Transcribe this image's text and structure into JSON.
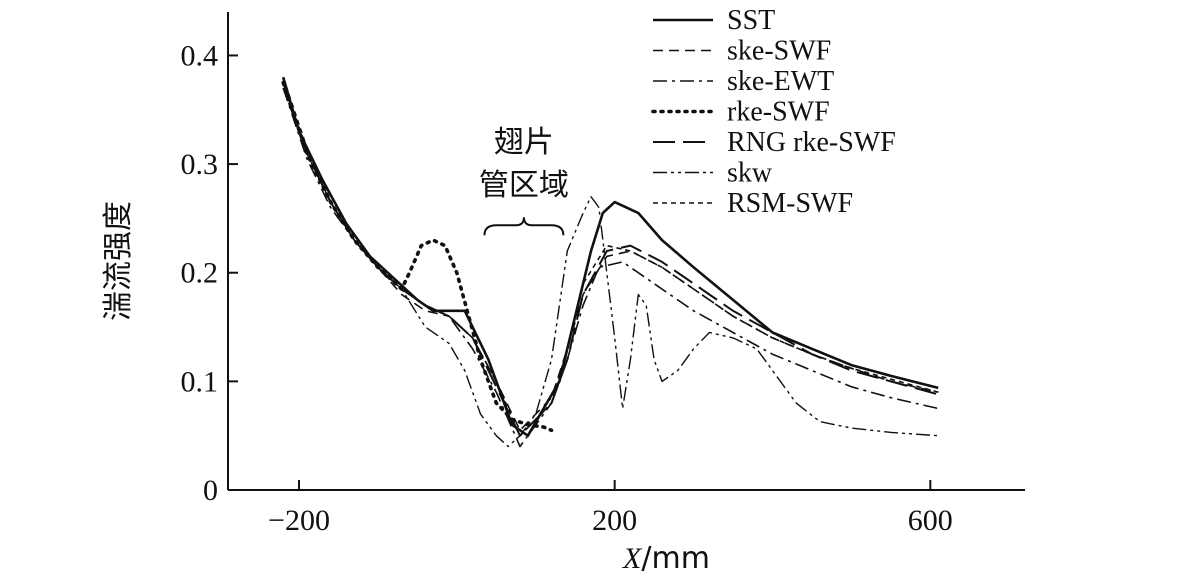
{
  "chart_data": {
    "type": "line",
    "xlabel_italic": "X",
    "xlabel_unit": "/mm",
    "ylabel": "湍流强度",
    "xlim": [
      -290,
      720
    ],
    "ylim": [
      0,
      0.44
    ],
    "xticks": [
      -200,
      200,
      600
    ],
    "xtick_labels": [
      "−200",
      "200",
      "600"
    ],
    "yticks": [
      0,
      0.1,
      0.2,
      0.3,
      0.4
    ],
    "ytick_labels": [
      "0",
      "0.1",
      "0.2",
      "0.3",
      "0.4"
    ],
    "grid": false,
    "legend_position": "top-right",
    "annotation": {
      "lines": [
        "翅片",
        "管区域"
      ],
      "x_range": [
        35,
        135
      ],
      "y": 0.24
    },
    "series": [
      {
        "name": "SST",
        "style": "solid",
        "x": [
          -220,
          -200,
          -170,
          -140,
          -110,
          -80,
          -50,
          -30,
          -10,
          10,
          40,
          70,
          90,
          110,
          130,
          150,
          170,
          185,
          200,
          230,
          260,
          300,
          350,
          400,
          450,
          500,
          550,
          610
        ],
        "y": [
          0.38,
          0.33,
          0.285,
          0.245,
          0.215,
          0.195,
          0.175,
          0.165,
          0.165,
          0.165,
          0.12,
          0.06,
          0.05,
          0.075,
          0.1,
          0.16,
          0.22,
          0.255,
          0.265,
          0.255,
          0.23,
          0.205,
          0.175,
          0.145,
          0.13,
          0.115,
          0.105,
          0.094
        ]
      },
      {
        "name": "ske-SWF",
        "style": "dash",
        "x": [
          -220,
          -190,
          -160,
          -130,
          -100,
          -70,
          -40,
          -10,
          20,
          50,
          80,
          100,
          120,
          140,
          160,
          190,
          220,
          260,
          300,
          350,
          400,
          450,
          500,
          550,
          610
        ],
        "y": [
          0.37,
          0.31,
          0.265,
          0.23,
          0.205,
          0.18,
          0.165,
          0.16,
          0.14,
          0.1,
          0.055,
          0.07,
          0.085,
          0.13,
          0.18,
          0.215,
          0.22,
          0.205,
          0.185,
          0.16,
          0.14,
          0.125,
          0.112,
          0.1,
          0.09
        ]
      },
      {
        "name": "ske-EWT",
        "style": "dashdot",
        "x": [
          -220,
          -190,
          -160,
          -130,
          -100,
          -70,
          -40,
          -10,
          20,
          50,
          80,
          100,
          120,
          140,
          160,
          180,
          210,
          250,
          300,
          350,
          400,
          450,
          500,
          550,
          610
        ],
        "y": [
          0.37,
          0.305,
          0.26,
          0.23,
          0.205,
          0.185,
          0.17,
          0.16,
          0.13,
          0.09,
          0.04,
          0.06,
          0.08,
          0.12,
          0.17,
          0.205,
          0.21,
          0.19,
          0.165,
          0.145,
          0.125,
          0.11,
          0.095,
          0.085,
          0.075
        ]
      },
      {
        "name": "rke-SWF",
        "style": "dotted",
        "x": [
          -220,
          -190,
          -160,
          -130,
          -100,
          -70,
          -60,
          -45,
          -30,
          -15,
          0,
          15,
          30,
          50,
          70,
          90,
          110,
          120
        ],
        "y": [
          0.375,
          0.31,
          0.265,
          0.23,
          0.205,
          0.185,
          0.2,
          0.225,
          0.23,
          0.225,
          0.2,
          0.16,
          0.12,
          0.08,
          0.065,
          0.06,
          0.058,
          0.055
        ]
      },
      {
        "name": "RNG rke-SWF",
        "style": "longdash",
        "x": [
          -220,
          -190,
          -160,
          -130,
          -100,
          -70,
          -40,
          -10,
          20,
          50,
          80,
          100,
          120,
          140,
          160,
          190,
          220,
          260,
          300,
          350,
          400,
          450,
          500,
          550,
          610
        ],
        "y": [
          0.375,
          0.31,
          0.265,
          0.23,
          0.205,
          0.185,
          0.17,
          0.16,
          0.14,
          0.095,
          0.05,
          0.065,
          0.08,
          0.12,
          0.18,
          0.22,
          0.225,
          0.21,
          0.19,
          0.165,
          0.145,
          0.125,
          0.11,
          0.1,
          0.088
        ]
      },
      {
        "name": "skw",
        "style": "dashdotdot",
        "x": [
          -220,
          -190,
          -160,
          -130,
          -100,
          -70,
          -40,
          -10,
          10,
          30,
          50,
          65,
          80,
          100,
          120,
          140,
          160,
          170,
          180,
          190,
          200,
          210,
          220,
          230,
          240,
          250,
          260,
          280,
          300,
          320,
          350,
          380,
          400,
          430,
          460,
          500,
          550,
          610
        ],
        "y": [
          0.375,
          0.31,
          0.265,
          0.23,
          0.205,
          0.185,
          0.15,
          0.135,
          0.11,
          0.07,
          0.05,
          0.04,
          0.05,
          0.07,
          0.12,
          0.22,
          0.255,
          0.27,
          0.26,
          0.2,
          0.14,
          0.075,
          0.12,
          0.18,
          0.17,
          0.12,
          0.1,
          0.11,
          0.13,
          0.145,
          0.14,
          0.13,
          0.11,
          0.08,
          0.063,
          0.057,
          0.053,
          0.05
        ]
      },
      {
        "name": "RSM-SWF",
        "style": "shortdash",
        "x": [
          -220,
          -190,
          -160,
          -130,
          -100,
          -70,
          -40,
          -10,
          20,
          50,
          80,
          100,
          120,
          140,
          160,
          190,
          220,
          260,
          300,
          350,
          400,
          450,
          500,
          550,
          610
        ],
        "y": [
          0.38,
          0.315,
          0.265,
          0.23,
          0.205,
          0.185,
          0.17,
          0.16,
          0.14,
          0.1,
          0.05,
          0.065,
          0.08,
          0.13,
          0.19,
          0.225,
          0.22,
          0.205,
          0.185,
          0.16,
          0.14,
          0.125,
          0.112,
          0.102,
          0.09
        ]
      }
    ]
  }
}
